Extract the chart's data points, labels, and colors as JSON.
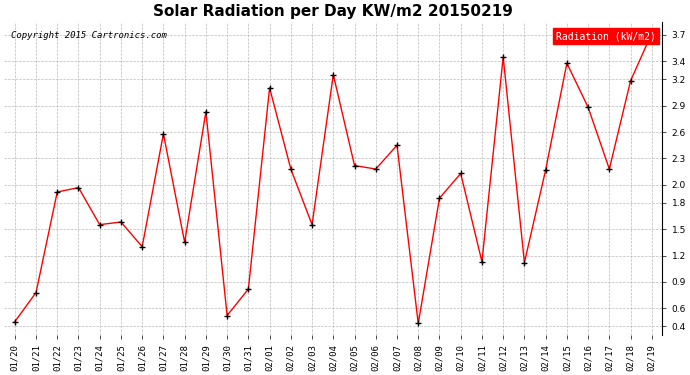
{
  "title": "Solar Radiation per Day KW/m2 20150219",
  "copyright": "Copyright 2015 Cartronics.com",
  "legend_label": "Radiation (kW/m2)",
  "labels": [
    "01/20",
    "01/21",
    "01/22",
    "01/23",
    "01/24",
    "01/25",
    "01/26",
    "01/27",
    "01/28",
    "01/29",
    "01/30",
    "01/31",
    "02/01",
    "02/02",
    "02/03",
    "02/04",
    "02/05",
    "02/06",
    "02/07",
    "02/08",
    "02/09",
    "02/10",
    "02/11",
    "02/12",
    "02/13",
    "02/14",
    "02/15",
    "02/16",
    "02/17",
    "02/18",
    "02/19"
  ],
  "values": [
    0.45,
    0.78,
    1.92,
    1.97,
    1.55,
    1.58,
    1.3,
    2.58,
    1.35,
    2.83,
    0.52,
    0.82,
    3.1,
    2.18,
    1.55,
    3.25,
    2.22,
    2.18,
    2.45,
    0.43,
    1.85,
    2.13,
    1.13,
    3.45,
    1.12,
    2.17,
    3.38,
    2.88,
    2.18,
    3.18,
    3.72
  ],
  "line_color": "red",
  "marker_color": "black",
  "background_color": "#ffffff",
  "grid_color": "#aaaaaa",
  "ylim": [
    0.3,
    3.85
  ],
  "yticks": [
    0.4,
    0.6,
    0.9,
    1.2,
    1.5,
    1.8,
    2.0,
    2.3,
    2.6,
    2.9,
    3.2,
    3.4,
    3.7
  ],
  "title_fontsize": 11,
  "copyright_fontsize": 6.5,
  "tick_fontsize": 6.5,
  "legend_bg": "red",
  "legend_text_color": "white",
  "legend_fontsize": 7
}
